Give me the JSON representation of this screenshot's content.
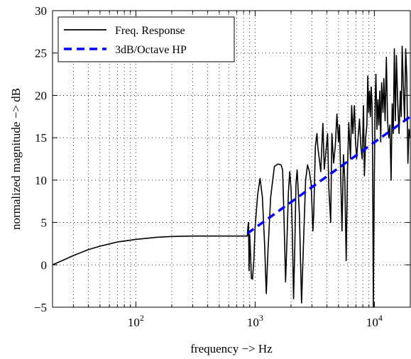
{
  "chart_data": {
    "type": "line",
    "xlabel": "frequency → Hz",
    "xlabel_text": "frequency −> Hz",
    "ylabel_text": "normalized magnitude −> dB",
    "x_scale": "log",
    "xlim": [
      20,
      20000
    ],
    "ylim": [
      -5,
      30
    ],
    "x_ticks": [
      {
        "value": 100,
        "base": "10",
        "exp": "2"
      },
      {
        "value": 1000,
        "base": "10",
        "exp": "3"
      },
      {
        "value": 10000,
        "base": "10",
        "exp": "4"
      }
    ],
    "y_ticks": [
      -5,
      0,
      5,
      10,
      15,
      20,
      25,
      30
    ],
    "y_tick_labels": [
      "−5",
      "0",
      "5",
      "10",
      "15",
      "20",
      "25",
      "30"
    ],
    "grid": true,
    "legend_position": "top-left",
    "series": [
      {
        "name": "Freq. Response",
        "color": "#000000",
        "style": "solid",
        "points": [
          [
            20,
            0.0
          ],
          [
            25,
            0.6
          ],
          [
            30,
            1.1
          ],
          [
            40,
            1.8
          ],
          [
            50,
            2.2
          ],
          [
            70,
            2.7
          ],
          [
            100,
            3.0
          ],
          [
            150,
            3.25
          ],
          [
            200,
            3.35
          ],
          [
            300,
            3.4
          ],
          [
            500,
            3.4
          ],
          [
            860,
            3.4
          ],
          [
            870,
            4.5
          ],
          [
            880,
            5.0
          ],
          [
            890,
            -0.7
          ],
          [
            900,
            3.6
          ],
          [
            915,
            1.3
          ],
          [
            930,
            -1.6
          ],
          [
            950,
            -1.7
          ],
          [
            975,
            0.5
          ],
          [
            1000,
            4.5
          ],
          [
            1050,
            8.3
          ],
          [
            1100,
            10.2
          ],
          [
            1150,
            8.0
          ],
          [
            1200,
            2.5
          ],
          [
            1240,
            -3.4
          ],
          [
            1280,
            1.5
          ],
          [
            1350,
            8.0
          ],
          [
            1450,
            11.6
          ],
          [
            1550,
            11.9
          ],
          [
            1650,
            11.8
          ],
          [
            1700,
            11.2
          ],
          [
            1750,
            5.0
          ],
          [
            1800,
            -2.0
          ],
          [
            1850,
            3.0
          ],
          [
            1900,
            8.5
          ],
          [
            1950,
            11.0
          ],
          [
            2000,
            9.0
          ],
          [
            2050,
            4.0
          ],
          [
            2100,
            -4.0
          ],
          [
            2150,
            2.0
          ],
          [
            2200,
            9.5
          ],
          [
            2250,
            11.2
          ],
          [
            2350,
            6.0
          ],
          [
            2450,
            -4.5
          ],
          [
            2550,
            3.0
          ],
          [
            2650,
            10.0
          ],
          [
            2750,
            11.8
          ],
          [
            2850,
            11.0
          ],
          [
            2950,
            9.5
          ],
          [
            3050,
            4.0
          ],
          [
            3100,
            6.0
          ],
          [
            3200,
            14.0
          ],
          [
            3300,
            15.5
          ],
          [
            3350,
            14.0
          ],
          [
            3450,
            12.5
          ],
          [
            3550,
            11.0
          ],
          [
            3700,
            16.7
          ],
          [
            3800,
            11.3
          ],
          [
            3900,
            13.0
          ],
          [
            4050,
            15.5
          ],
          [
            4150,
            9.0
          ],
          [
            4300,
            5.0
          ],
          [
            4400,
            15.5
          ],
          [
            4550,
            12.0
          ],
          [
            4700,
            14.0
          ],
          [
            4850,
            17.8
          ],
          [
            5000,
            14.5
          ],
          [
            5100,
            16.5
          ],
          [
            5250,
            9.0
          ],
          [
            5350,
            4.0
          ],
          [
            5500,
            13.0
          ],
          [
            5650,
            10.0
          ],
          [
            5800,
            0.5
          ],
          [
            5950,
            11.2
          ],
          [
            6100,
            16.8
          ],
          [
            6300,
            12.5
          ],
          [
            6450,
            18.8
          ],
          [
            6600,
            15.5
          ],
          [
            6800,
            18.8
          ],
          [
            6950,
            14.5
          ],
          [
            7100,
            12.5
          ],
          [
            7300,
            15.0
          ],
          [
            7500,
            17.2
          ],
          [
            7700,
            14.0
          ],
          [
            7900,
            12.5
          ],
          [
            8100,
            18.8
          ],
          [
            8250,
            10.5
          ],
          [
            8450,
            15.0
          ],
          [
            8650,
            16.5
          ],
          [
            8800,
            22.3
          ],
          [
            8950,
            18.0
          ],
          [
            9100,
            20.5
          ],
          [
            9250,
            17.5
          ],
          [
            9400,
            21.0
          ],
          [
            9550,
            19.0
          ],
          [
            9650,
            14.0
          ],
          [
            9800,
            -5.0
          ],
          [
            9950,
            8.0
          ],
          [
            10150,
            19.5
          ],
          [
            10300,
            22.5
          ],
          [
            10500,
            16.0
          ],
          [
            10700,
            19.5
          ],
          [
            10900,
            16.5
          ],
          [
            11100,
            20.5
          ],
          [
            11300,
            14.5
          ],
          [
            11500,
            21.5
          ],
          [
            11800,
            18.0
          ],
          [
            12000,
            22.0
          ],
          [
            12300,
            17.0
          ],
          [
            12600,
            24.5
          ],
          [
            12900,
            17.0
          ],
          [
            13200,
            15.0
          ],
          [
            13500,
            16.5
          ],
          [
            13800,
            10.0
          ],
          [
            14100,
            19.0
          ],
          [
            14400,
            15.5
          ],
          [
            14700,
            25.5
          ],
          [
            15000,
            17.0
          ],
          [
            15300,
            24.7
          ],
          [
            15700,
            19.0
          ],
          [
            16100,
            15.5
          ],
          [
            16500,
            20.5
          ],
          [
            16800,
            17.5
          ],
          [
            17100,
            25.8
          ],
          [
            17500,
            21.0
          ],
          [
            17900,
            17.0
          ],
          [
            18300,
            25.5
          ],
          [
            18700,
            22.0
          ],
          [
            19100,
            12.0
          ],
          [
            19500,
            16.0
          ],
          [
            20000,
            15.0
          ]
        ]
      },
      {
        "name": "3dB/Octave HP",
        "color": "#0000ff",
        "style": "dashed",
        "points": [
          [
            860,
            3.7
          ],
          [
            20000,
            17.5
          ]
        ]
      }
    ]
  }
}
